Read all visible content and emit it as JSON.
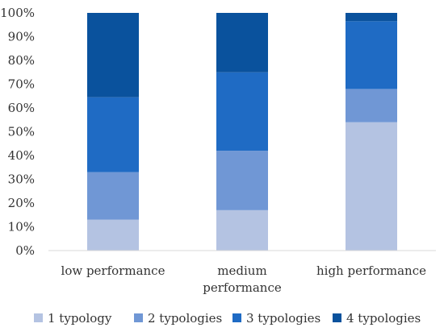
{
  "chart_data": {
    "type": "bar",
    "stacked": true,
    "percent": true,
    "categories": [
      "low performance",
      "medium performance",
      "high performance"
    ],
    "category_label_lines": [
      [
        "low performance"
      ],
      [
        "medium",
        "performance"
      ],
      [
        "high performance"
      ]
    ],
    "series": [
      {
        "name": "1 typology",
        "values": [
          13,
          17,
          54
        ],
        "color": "#b4c3e2"
      },
      {
        "name": "2 typologies",
        "values": [
          20,
          25,
          14
        ],
        "color": "#7097d5"
      },
      {
        "name": "3 typologies",
        "values": [
          31.5,
          33,
          28.5
        ],
        "color": "#1f6bc4"
      },
      {
        "name": "4 typologies",
        "values": [
          35.5,
          25,
          3.5
        ],
        "color": "#0a529d"
      }
    ],
    "ylim": [
      0,
      100
    ],
    "yticks": [
      0,
      10,
      20,
      30,
      40,
      50,
      60,
      70,
      80,
      90,
      100
    ],
    "ytick_labels": [
      "0%",
      "10%",
      "20%",
      "30%",
      "40%",
      "50%",
      "60%",
      "70%",
      "80%",
      "90%",
      "100%"
    ],
    "title": "",
    "xlabel": "",
    "ylabel": "",
    "grid": false,
    "legend_position": "bottom"
  }
}
